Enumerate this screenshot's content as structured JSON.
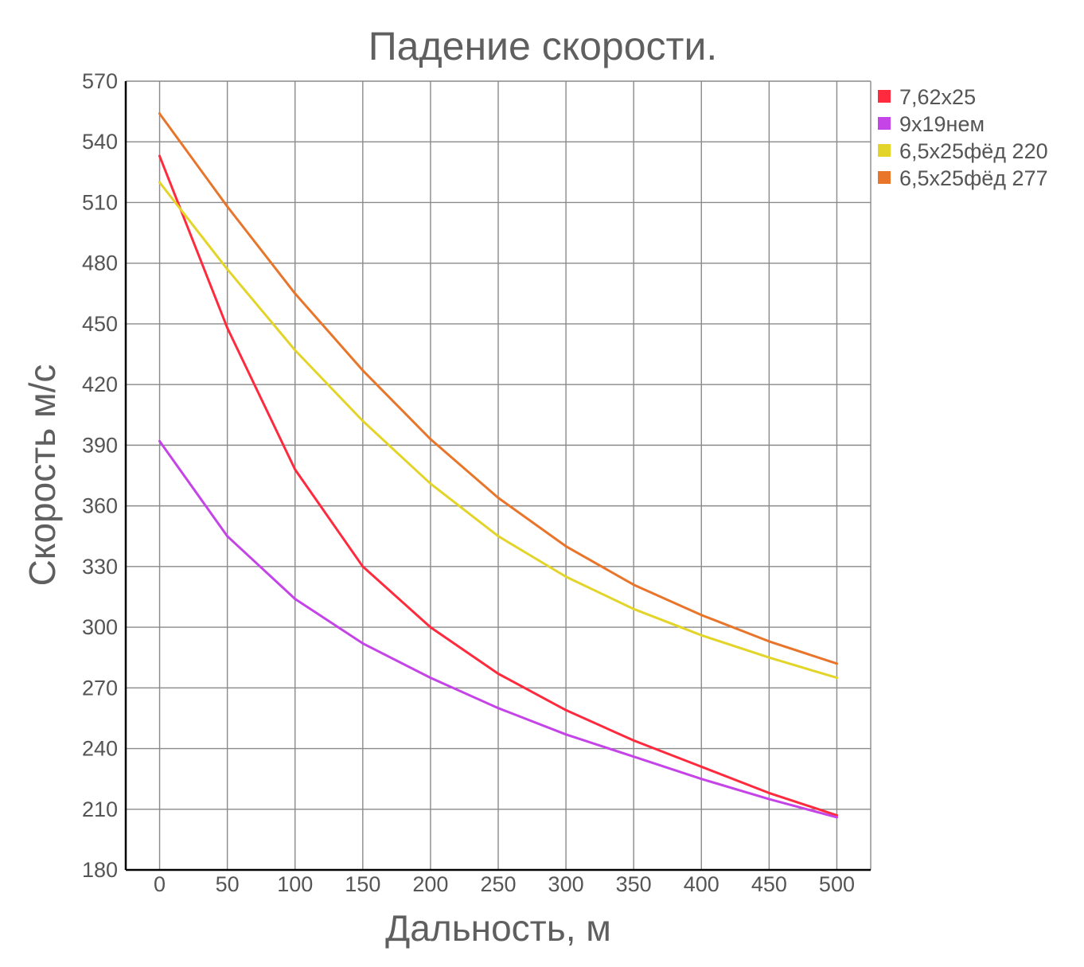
{
  "chart_data": {
    "type": "line",
    "title": "Падение скорости.",
    "xlabel": "Дальность, м",
    "ylabel": "Скорость м/с",
    "x": [
      0,
      50,
      100,
      150,
      200,
      250,
      300,
      350,
      400,
      450,
      500
    ],
    "xlim": [
      -25,
      525
    ],
    "ylim": [
      180,
      570
    ],
    "yticks": [
      180,
      210,
      240,
      270,
      300,
      330,
      360,
      390,
      420,
      450,
      480,
      510,
      540,
      570
    ],
    "grid": true,
    "legend_position": "top-right",
    "series": [
      {
        "name": "7,62x25",
        "color": "#ff2a3d",
        "values": [
          533,
          448,
          378,
          330,
          300,
          277,
          259,
          244,
          231,
          218,
          207
        ]
      },
      {
        "name": "9x19нем",
        "color": "#c444e8",
        "values": [
          392,
          345,
          314,
          292,
          275,
          260,
          247,
          236,
          225,
          215,
          206
        ]
      },
      {
        "name": "6,5x25фёд 220",
        "color": "#e3d42a",
        "values": [
          520,
          477,
          437,
          402,
          371,
          345,
          325,
          309,
          296,
          285,
          275
        ]
      },
      {
        "name": "6,5x25фёд 277",
        "color": "#e8752a",
        "values": [
          554,
          508,
          465,
          427,
          393,
          364,
          340,
          321,
          306,
          293,
          282
        ]
      }
    ]
  }
}
